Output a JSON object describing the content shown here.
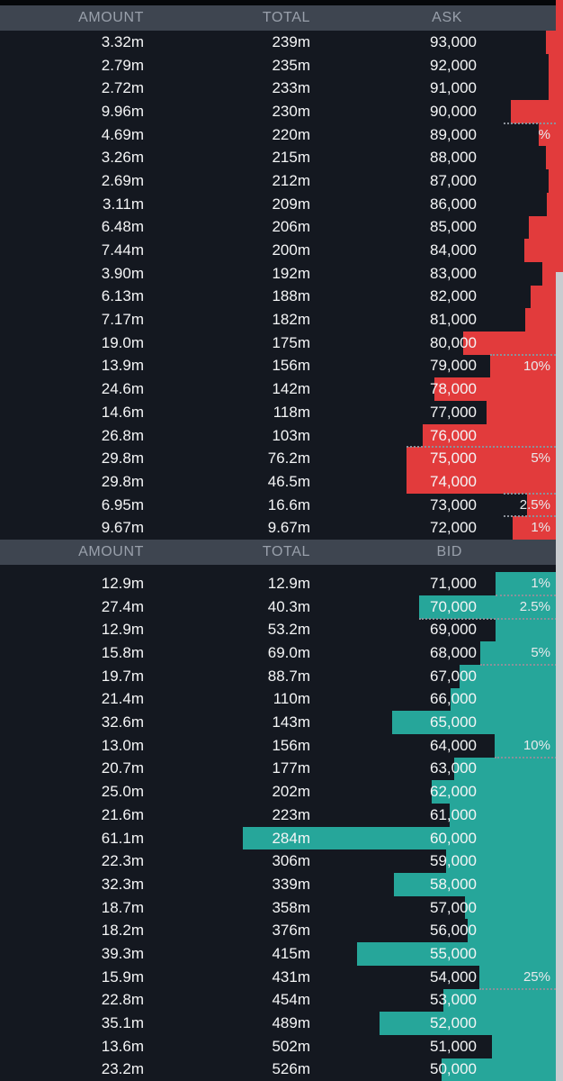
{
  "colors": {
    "background": "#141820",
    "header_bg": "#3e4550",
    "header_text": "#99a0ab",
    "row_text": "#f4f5f6",
    "ask_bar": "#e23b3c",
    "bid_bar": "#26a69a",
    "marker_text": "#e8eaec",
    "marker_line": "#8b919a",
    "scroll_thumb": "#c9ccd0"
  },
  "asks": {
    "header": {
      "amount": "AMOUNT",
      "total": "TOTAL",
      "price": "ASK"
    },
    "rows": [
      {
        "amount": "3.32m",
        "total": "239m",
        "price": "93,000"
      },
      {
        "amount": "2.79m",
        "total": "235m",
        "price": "92,000"
      },
      {
        "amount": "2.72m",
        "total": "233m",
        "price": "91,000"
      },
      {
        "amount": "9.96m",
        "total": "230m",
        "price": "90,000"
      },
      {
        "amount": "4.69m",
        "total": "220m",
        "price": "89,000",
        "marker": "%"
      },
      {
        "amount": "3.26m",
        "total": "215m",
        "price": "88,000"
      },
      {
        "amount": "2.69m",
        "total": "212m",
        "price": "87,000"
      },
      {
        "amount": "3.11m",
        "total": "209m",
        "price": "86,000"
      },
      {
        "amount": "6.48m",
        "total": "206m",
        "price": "85,000"
      },
      {
        "amount": "7.44m",
        "total": "200m",
        "price": "84,000"
      },
      {
        "amount": "3.90m",
        "total": "192m",
        "price": "83,000"
      },
      {
        "amount": "6.13m",
        "total": "188m",
        "price": "82,000"
      },
      {
        "amount": "7.17m",
        "total": "182m",
        "price": "81,000"
      },
      {
        "amount": "19.0m",
        "total": "175m",
        "price": "80,000"
      },
      {
        "amount": "13.9m",
        "total": "156m",
        "price": "79,000",
        "marker": "10%"
      },
      {
        "amount": "24.6m",
        "total": "142m",
        "price": "78,000"
      },
      {
        "amount": "14.6m",
        "total": "118m",
        "price": "77,000"
      },
      {
        "amount": "26.8m",
        "total": "103m",
        "price": "76,000"
      },
      {
        "amount": "29.8m",
        "total": "76.2m",
        "price": "75,000",
        "marker": "5%"
      },
      {
        "amount": "29.8m",
        "total": "46.5m",
        "price": "74,000"
      },
      {
        "amount": "6.95m",
        "total": "16.6m",
        "price": "73,000",
        "marker": "2.5%"
      },
      {
        "amount": "9.67m",
        "total": "9.67m",
        "price": "72,000",
        "marker": "1%"
      }
    ]
  },
  "bids": {
    "header": {
      "amount": "AMOUNT",
      "total": "TOTAL",
      "price": "BID"
    },
    "rows": [
      {
        "amount": "12.9m",
        "total": "12.9m",
        "price": "71,000",
        "marker": "1%"
      },
      {
        "amount": "27.4m",
        "total": "40.3m",
        "price": "70,000",
        "marker": "2.5%"
      },
      {
        "amount": "12.9m",
        "total": "53.2m",
        "price": "69,000"
      },
      {
        "amount": "15.8m",
        "total": "69.0m",
        "price": "68,000",
        "marker": "5%"
      },
      {
        "amount": "19.7m",
        "total": "88.7m",
        "price": "67,000"
      },
      {
        "amount": "21.4m",
        "total": "110m",
        "price": "66,000"
      },
      {
        "amount": "32.6m",
        "total": "143m",
        "price": "65,000"
      },
      {
        "amount": "13.0m",
        "total": "156m",
        "price": "64,000",
        "marker": "10%"
      },
      {
        "amount": "20.7m",
        "total": "177m",
        "price": "63,000"
      },
      {
        "amount": "25.0m",
        "total": "202m",
        "price": "62,000"
      },
      {
        "amount": "21.6m",
        "total": "223m",
        "price": "61,000"
      },
      {
        "amount": "61.1m",
        "total": "284m",
        "price": "60,000"
      },
      {
        "amount": "22.3m",
        "total": "306m",
        "price": "59,000"
      },
      {
        "amount": "32.3m",
        "total": "339m",
        "price": "58,000"
      },
      {
        "amount": "18.7m",
        "total": "358m",
        "price": "57,000"
      },
      {
        "amount": "18.2m",
        "total": "376m",
        "price": "56,000"
      },
      {
        "amount": "39.3m",
        "total": "415m",
        "price": "55,000"
      },
      {
        "amount": "15.9m",
        "total": "431m",
        "price": "54,000",
        "marker": "25%"
      },
      {
        "amount": "22.8m",
        "total": "454m",
        "price": "53,000"
      },
      {
        "amount": "35.1m",
        "total": "489m",
        "price": "52,000"
      },
      {
        "amount": "13.6m",
        "total": "502m",
        "price": "51,000"
      },
      {
        "amount": "23.2m",
        "total": "526m",
        "price": "50,000"
      }
    ]
  }
}
